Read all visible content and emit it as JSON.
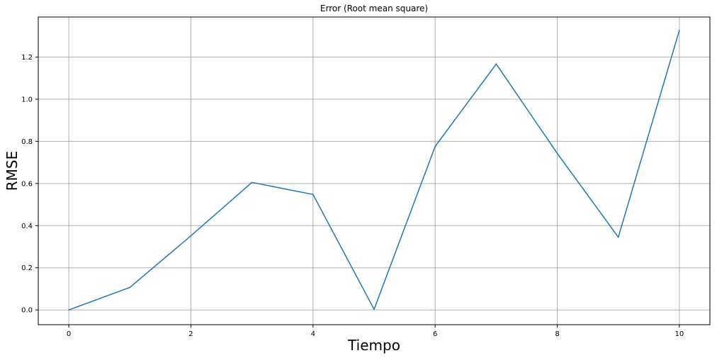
{
  "chart_data": {
    "type": "line",
    "title": "Error (Root mean square)",
    "xlabel": "Tiempo",
    "ylabel": "RMSE",
    "xlim": [
      -0.5,
      10.5
    ],
    "ylim": [
      -0.07,
      1.39
    ],
    "xticks": [
      0,
      2,
      4,
      6,
      8,
      10
    ],
    "yticks": [
      0.0,
      0.2,
      0.4,
      0.6,
      0.8,
      1.0,
      1.2
    ],
    "ytick_labels": [
      "0.0",
      "0.2",
      "0.4",
      "0.6",
      "0.8",
      "1.0",
      "1.2"
    ],
    "grid": true,
    "series": [
      {
        "color": "#1f77b4",
        "x": [
          0,
          1,
          2,
          3,
          4,
          5,
          6,
          7,
          8,
          9,
          10
        ],
        "y": [
          0.0,
          0.107,
          0.352,
          0.605,
          0.548,
          0.003,
          0.776,
          1.167,
          0.743,
          0.345,
          1.327
        ]
      }
    ]
  }
}
